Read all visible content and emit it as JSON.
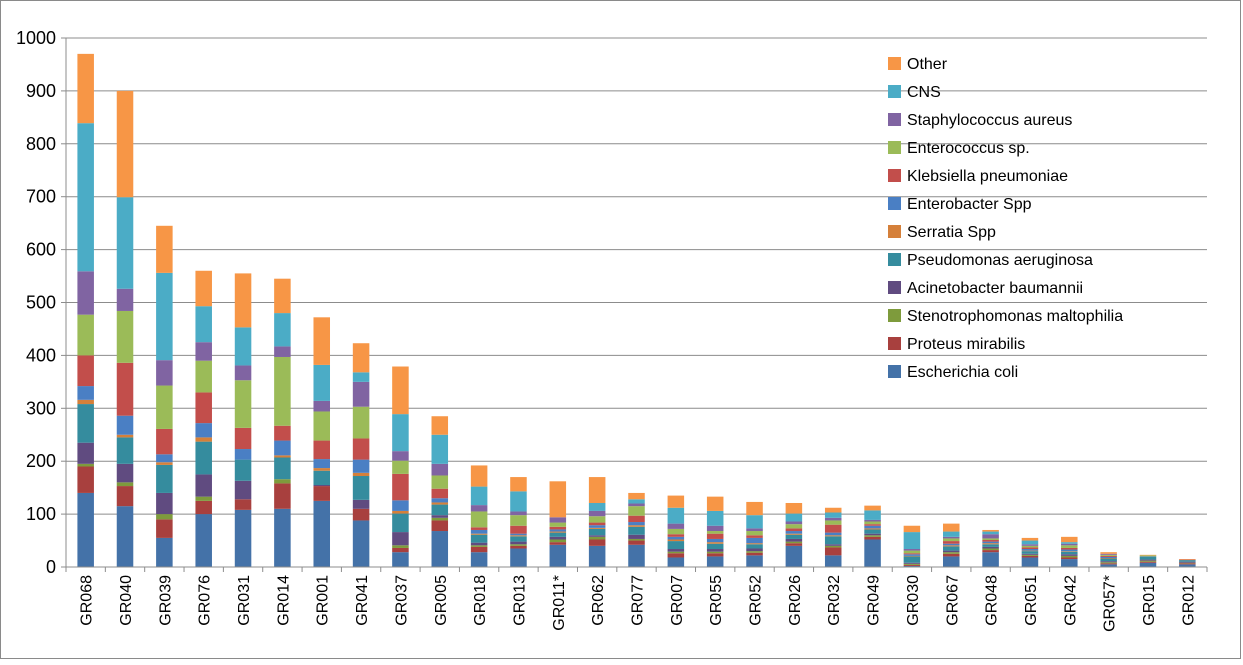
{
  "chart_data": {
    "type": "bar",
    "stacked": true,
    "ylim": [
      0,
      1000
    ],
    "yticks": [
      "0",
      "100",
      "200",
      "300",
      "400",
      "500",
      "600",
      "700",
      "800",
      "900",
      "1000"
    ],
    "grid": "horizontal",
    "legend_position": "right",
    "categories": [
      "GR068",
      "GR040",
      "GR039",
      "GR076",
      "GR031",
      "GR014",
      "GR001",
      "GR041",
      "GR037",
      "GR005",
      "GR018",
      "GR013",
      "GR011*",
      "GR062",
      "GR077",
      "GR007",
      "GR055",
      "GR052",
      "GR026",
      "GR032",
      "GR049",
      "GR030",
      "GR067",
      "GR048",
      "GR051",
      "GR042",
      "GR057*",
      "GR015",
      "GR012"
    ],
    "series": [
      {
        "name": "Escherichia coli",
        "color": "#4472A8",
        "values": [
          140,
          115,
          55,
          100,
          108,
          110,
          125,
          88,
          28,
          68,
          28,
          35,
          42,
          40,
          42,
          18,
          20,
          22,
          40,
          22,
          52,
          2,
          20,
          28,
          18,
          15,
          5,
          8,
          5
        ]
      },
      {
        "name": "Proteus mirabilis",
        "color": "#A8403E",
        "values": [
          50,
          38,
          35,
          25,
          20,
          48,
          28,
          22,
          8,
          20,
          10,
          5,
          5,
          12,
          8,
          8,
          6,
          5,
          5,
          15,
          5,
          2,
          5,
          4,
          3,
          3,
          2,
          2,
          2
        ]
      },
      {
        "name": "Stenotrophomonas maltophilia",
        "color": "#7E9B3C",
        "values": [
          5,
          7,
          10,
          8,
          0,
          8,
          0,
          0,
          5,
          5,
          3,
          3,
          5,
          5,
          3,
          3,
          3,
          3,
          3,
          3,
          3,
          2,
          3,
          3,
          2,
          3,
          2,
          2,
          1
        ]
      },
      {
        "name": "Acinetobacter baumannii",
        "color": "#604B80",
        "values": [
          40,
          35,
          40,
          42,
          35,
          0,
          2,
          17,
          25,
          5,
          5,
          5,
          5,
          3,
          8,
          5,
          5,
          5,
          5,
          3,
          3,
          2,
          3,
          3,
          2,
          3,
          2,
          2,
          2
        ]
      },
      {
        "name": "Pseudomonas aeruginosa",
        "color": "#358C9E",
        "values": [
          73,
          50,
          53,
          62,
          40,
          41,
          27,
          45,
          35,
          20,
          15,
          10,
          8,
          12,
          15,
          15,
          10,
          8,
          8,
          15,
          8,
          12,
          8,
          5,
          5,
          5,
          5,
          5,
          3
        ]
      },
      {
        "name": "Serratia Spp",
        "color": "#D5803A",
        "values": [
          8,
          5,
          5,
          8,
          0,
          4,
          5,
          6,
          5,
          4,
          2,
          2,
          2,
          2,
          3,
          3,
          3,
          2,
          2,
          2,
          2,
          1,
          2,
          2,
          1,
          1,
          1,
          0,
          0
        ]
      },
      {
        "name": "Enterobacter Spp",
        "color": "#4A7FC4",
        "values": [
          26,
          36,
          15,
          27,
          20,
          28,
          17,
          25,
          20,
          8,
          7,
          3,
          4,
          5,
          6,
          5,
          6,
          10,
          5,
          5,
          5,
          3,
          3,
          3,
          3,
          3,
          2,
          1,
          0
        ]
      },
      {
        "name": "Klebsiella pneumoniae",
        "color": "#C24E4B",
        "values": [
          58,
          100,
          48,
          58,
          40,
          28,
          35,
          40,
          50,
          18,
          5,
          15,
          5,
          5,
          12,
          5,
          10,
          5,
          5,
          15,
          3,
          2,
          5,
          3,
          3,
          3,
          2,
          0,
          1
        ]
      },
      {
        "name": "Enterococcus sp.",
        "color": "#9BBB58",
        "values": [
          77,
          98,
          82,
          60,
          90,
          130,
          55,
          60,
          25,
          25,
          30,
          20,
          8,
          12,
          18,
          10,
          5,
          8,
          8,
          8,
          5,
          5,
          5,
          3,
          3,
          5,
          2,
          2,
          0
        ]
      },
      {
        "name": "Staphylococcus aureus",
        "color": "#8064A2",
        "values": [
          82,
          42,
          48,
          35,
          28,
          20,
          20,
          47,
          18,
          22,
          12,
          7,
          10,
          10,
          5,
          10,
          10,
          5,
          5,
          5,
          3,
          3,
          3,
          8,
          3,
          3,
          2,
          0,
          0
        ]
      },
      {
        "name": "CNS",
        "color": "#4BACC6",
        "values": [
          280,
          173,
          165,
          68,
          72,
          63,
          68,
          18,
          70,
          55,
          35,
          38,
          0,
          15,
          8,
          30,
          28,
          25,
          15,
          10,
          18,
          32,
          10,
          5,
          7,
          3,
          0,
          0,
          0
        ]
      },
      {
        "name": "Other",
        "color": "#F79646",
        "values": [
          131,
          201,
          89,
          67,
          102,
          65,
          90,
          55,
          90,
          35,
          40,
          27,
          68,
          49,
          12,
          23,
          27,
          25,
          20,
          9,
          9,
          12,
          15,
          3,
          5,
          10,
          3,
          1,
          1
        ]
      }
    ]
  }
}
